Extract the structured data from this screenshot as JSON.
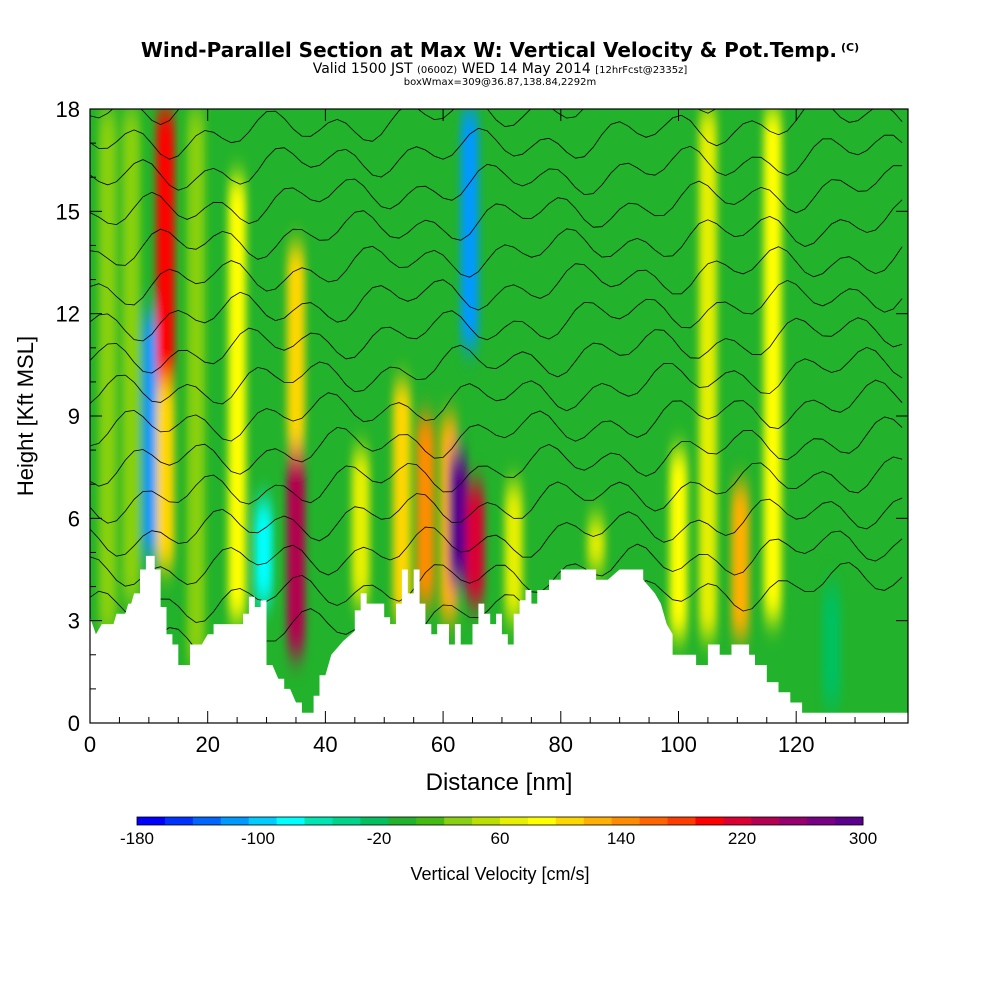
{
  "header": {
    "title": "Wind-Parallel Section at Max W: Vertical Velocity & Pot.Temp.",
    "copyright": "(C)",
    "valid_prefix": "Valid 1500 JST",
    "valid_z": "(0600Z)",
    "valid_date": "WED 14 May 2014",
    "valid_fcst": "[12hrFcst@2335z]",
    "box_info": "boxWmax=309@36.87,138.84,2292m"
  },
  "chart_data": {
    "type": "heatmap",
    "title": "Wind-Parallel Section at Max W: Vertical Velocity & Pot.Temp.",
    "xlabel": "Distance [nm]",
    "ylabel": "Height [Kft MSL]",
    "xlim": [
      0,
      139
    ],
    "ylim": [
      0,
      18
    ],
    "x_ticks": [
      0,
      20,
      40,
      60,
      80,
      100,
      120
    ],
    "y_ticks": [
      0,
      3,
      6,
      9,
      12,
      15,
      18
    ],
    "colorbar": {
      "label": "Vertical Velocity [cm/s]",
      "tick_labels": [
        -180,
        -100,
        -20,
        60,
        140,
        220,
        300
      ],
      "colors": [
        "#0000ff",
        "#0033ff",
        "#0066ff",
        "#0099ff",
        "#00ccff",
        "#00ffff",
        "#00e6b3",
        "#00d48a",
        "#00c060",
        "#22b22b",
        "#44bb11",
        "#88d011",
        "#bbe000",
        "#e6f000",
        "#ffff00",
        "#ffd700",
        "#ffb000",
        "#ff8c00",
        "#ff6400",
        "#ff3c00",
        "#ff0000",
        "#dc0032",
        "#b40050",
        "#96006e",
        "#780082",
        "#5a008c"
      ]
    },
    "velocity_columns": [
      {
        "x": 3,
        "w": 40,
        "bottom": 2.6,
        "top": 18
      },
      {
        "x": 7,
        "w": 40,
        "bottom": 3.5,
        "top": 18
      },
      {
        "x": 10.5,
        "w": -120,
        "bottom": 4.9,
        "top": 12
      },
      {
        "x": 12.8,
        "w": 200,
        "bottom": 10,
        "top": 18
      },
      {
        "x": 12.8,
        "w": 100,
        "bottom": 4.5,
        "top": 10
      },
      {
        "x": 18,
        "w": 40,
        "bottom": 1.7,
        "top": 18
      },
      {
        "x": 25,
        "w": 80,
        "bottom": 3.0,
        "top": 16
      },
      {
        "x": 29.5,
        "w": -80,
        "bottom": 3.5,
        "top": 6.5
      },
      {
        "x": 35,
        "w": 240,
        "bottom": 2.0,
        "top": 8
      },
      {
        "x": 35,
        "w": 100,
        "bottom": 8,
        "top": 14
      },
      {
        "x": 46,
        "w": 60,
        "bottom": 3.5,
        "top": 8
      },
      {
        "x": 53,
        "w": 100,
        "bottom": 3.0,
        "top": 10
      },
      {
        "x": 57,
        "w": 140,
        "bottom": 3.5,
        "top": 9
      },
      {
        "x": 61,
        "w": 120,
        "bottom": 3.0,
        "top": 9
      },
      {
        "x": 62.5,
        "w": 300,
        "bottom": 4.0,
        "top": 8
      },
      {
        "x": 64.5,
        "w": -110,
        "bottom": 11,
        "top": 18
      },
      {
        "x": 65.5,
        "w": 220,
        "bottom": 3.5,
        "top": 7
      },
      {
        "x": 72,
        "w": 60,
        "bottom": 3.0,
        "top": 7
      },
      {
        "x": 86,
        "w": 60,
        "bottom": 4.5,
        "top": 6
      },
      {
        "x": 100,
        "w": 80,
        "bottom": 2.5,
        "top": 8
      },
      {
        "x": 105,
        "w": 60,
        "bottom": 2.5,
        "top": 18
      },
      {
        "x": 110.5,
        "w": 120,
        "bottom": 2.5,
        "top": 7
      },
      {
        "x": 116,
        "w": 80,
        "bottom": 3.0,
        "top": 18
      },
      {
        "x": 126,
        "w": -20,
        "bottom": 0.5,
        "top": 4
      }
    ],
    "terrain_profile": [
      [
        0,
        3.1
      ],
      [
        1,
        2.6
      ],
      [
        2,
        2.9
      ],
      [
        4,
        2.9
      ],
      [
        4.5,
        3.2
      ],
      [
        6,
        3.2
      ],
      [
        6.5,
        3.5
      ],
      [
        7,
        3.5
      ],
      [
        7.5,
        3.8
      ],
      [
        8.5,
        3.8
      ],
      [
        8.5,
        4.5
      ],
      [
        9.5,
        4.5
      ],
      [
        9.5,
        4.9
      ],
      [
        11,
        4.9
      ],
      [
        11,
        4.5
      ],
      [
        12,
        4.5
      ],
      [
        12,
        3.4
      ],
      [
        13,
        3.4
      ],
      [
        13,
        2.6
      ],
      [
        14,
        2.6
      ],
      [
        14,
        2.3
      ],
      [
        15,
        2.3
      ],
      [
        15,
        1.7
      ],
      [
        17,
        1.7
      ],
      [
        17,
        2.3
      ],
      [
        19,
        2.3
      ],
      [
        20,
        2.6
      ],
      [
        21,
        2.6
      ],
      [
        21,
        2.9
      ],
      [
        26,
        2.9
      ],
      [
        26,
        3.2
      ],
      [
        27,
        3.2
      ],
      [
        27,
        3.7
      ],
      [
        28,
        3.7
      ],
      [
        28,
        3.4
      ],
      [
        29,
        3.4
      ],
      [
        29,
        3.6
      ],
      [
        30,
        3.6
      ],
      [
        30,
        1.7
      ],
      [
        31,
        1.7
      ],
      [
        32,
        1.3
      ],
      [
        33,
        1.3
      ],
      [
        33,
        1.0
      ],
      [
        34,
        1.0
      ],
      [
        35,
        0.6
      ],
      [
        36,
        0.6
      ],
      [
        36,
        0.3
      ],
      [
        38,
        0.3
      ],
      [
        38,
        0.8
      ],
      [
        39,
        0.8
      ],
      [
        39,
        1.4
      ],
      [
        40,
        1.4
      ],
      [
        41,
        2.0
      ],
      [
        43,
        2.4
      ],
      [
        45,
        2.7
      ],
      [
        45,
        3.3
      ],
      [
        46,
        3.3
      ],
      [
        46,
        3.8
      ],
      [
        47,
        3.8
      ],
      [
        47,
        3.5
      ],
      [
        50,
        3.5
      ],
      [
        50,
        3.1
      ],
      [
        51,
        3.1
      ],
      [
        51,
        2.9
      ],
      [
        52,
        2.9
      ],
      [
        52,
        3.5
      ],
      [
        53,
        3.5
      ],
      [
        53,
        4.5
      ],
      [
        54,
        4.5
      ],
      [
        54,
        3.8
      ],
      [
        55,
        3.8
      ],
      [
        55,
        4.5
      ],
      [
        56,
        4.5
      ],
      [
        56,
        3.5
      ],
      [
        57,
        3.5
      ],
      [
        57,
        2.9
      ],
      [
        58,
        2.9
      ],
      [
        58,
        2.6
      ],
      [
        59,
        2.6
      ],
      [
        59,
        2.9
      ],
      [
        61,
        2.9
      ],
      [
        61,
        2.3
      ],
      [
        62,
        2.3
      ],
      [
        62,
        2.9
      ],
      [
        63,
        2.9
      ],
      [
        63,
        2.3
      ],
      [
        65,
        2.3
      ],
      [
        65,
        2.9
      ],
      [
        66,
        2.9
      ],
      [
        66,
        3.5
      ],
      [
        67,
        3.5
      ],
      [
        67,
        3.2
      ],
      [
        68,
        3.2
      ],
      [
        68,
        2.9
      ],
      [
        69,
        2.9
      ],
      [
        69,
        3.2
      ],
      [
        70,
        3.2
      ],
      [
        70,
        2.6
      ],
      [
        71,
        2.6
      ],
      [
        71,
        2.3
      ],
      [
        72,
        2.3
      ],
      [
        72,
        3.2
      ],
      [
        73,
        3.2
      ],
      [
        73,
        3.6
      ],
      [
        74,
        3.6
      ],
      [
        74,
        3.9
      ],
      [
        75,
        3.9
      ],
      [
        75,
        3.5
      ],
      [
        76,
        3.5
      ],
      [
        76,
        3.9
      ],
      [
        78,
        3.9
      ],
      [
        78,
        4.2
      ],
      [
        80,
        4.2
      ],
      [
        80,
        4.5
      ],
      [
        86,
        4.5
      ],
      [
        86,
        4.2
      ],
      [
        88,
        4.2
      ],
      [
        90,
        4.5
      ],
      [
        94,
        4.5
      ],
      [
        94,
        4.2
      ],
      [
        96,
        3.8
      ],
      [
        97,
        3.5
      ],
      [
        98,
        2.9
      ],
      [
        99,
        2.6
      ],
      [
        99,
        2.0
      ],
      [
        103,
        2.0
      ],
      [
        103,
        1.7
      ],
      [
        105,
        1.7
      ],
      [
        105,
        2.3
      ],
      [
        107,
        2.3
      ],
      [
        107,
        2.0
      ],
      [
        109,
        2.0
      ],
      [
        109,
        2.3
      ],
      [
        112,
        2.3
      ],
      [
        112,
        2.0
      ],
      [
        113,
        2.0
      ],
      [
        113,
        1.7
      ],
      [
        115,
        1.7
      ],
      [
        115,
        1.2
      ],
      [
        117,
        1.2
      ],
      [
        117,
        0.9
      ],
      [
        119,
        0.9
      ],
      [
        119,
        0.6
      ],
      [
        121,
        0.6
      ],
      [
        121,
        0.3
      ],
      [
        139,
        0.3
      ]
    ],
    "contours": "potential temperature isentropes (thin black lines)"
  }
}
